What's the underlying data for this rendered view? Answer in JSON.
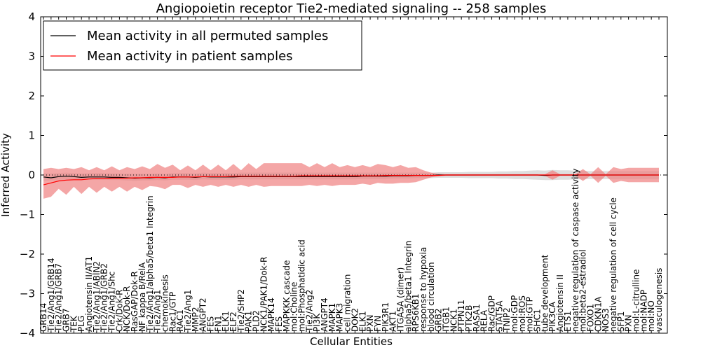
{
  "chart_data": {
    "type": "line",
    "title": "Angiopoietin receptor Tie2-mediated signaling -- 258 samples",
    "xlabel": "Cellular Entities",
    "ylabel": "Inferred Activity",
    "ylim": [
      -4,
      4
    ],
    "yticks": [
      -4,
      -3,
      -2,
      -1,
      0,
      1,
      2,
      3,
      4
    ],
    "ytick_labels": [
      "−4",
      "−3",
      "−2",
      "−1",
      "0",
      "1",
      "2",
      "3",
      "4"
    ],
    "grid": false,
    "legend_position": "top-left",
    "reference_line": 0,
    "categories": [
      "GRB14",
      "Tie2/Ang1/GRB14",
      "Tie2/Ang1/GRB7",
      "GRB7",
      "TEK",
      "PLG",
      "Angiotensin II/AT1",
      "Tie2/Ang1/ABIN2",
      "Tie2/Ang1/GRB2",
      "Tie2/Ang1/Shc",
      "Crk/Dok-R",
      "NCK/Dok-R",
      "RasGAP/Dok-R",
      "NF kappa B/RelA",
      "Tie2/Ang1/alpha5/beta1 Integrin",
      "Tie2/Ang1",
      "chemokinesis",
      "Rac1/GTP",
      "RAC1",
      "Tie2/Ang1",
      "MMP2",
      "ANGPT2",
      "FES",
      "FN1",
      "ELK1",
      "ELF2",
      "Tie2/SHP2",
      "PAK1",
      "PLD2",
      "NCK1/PAK1/Dok-R",
      "MAPK14",
      "FES",
      "MAPKKK cascade",
      "mol:Choline",
      "mol:Phosphatidic acid",
      "Tie2/Ang2",
      "PI3K",
      "ANGPT4",
      "MAPK1",
      "MAPK3",
      "cell migration",
      "DOK2",
      "ELK1",
      "PXN",
      "FYN",
      "PIK3R1",
      "AKT1",
      "ITGA5A (dimer)",
      "alpha5/beta1 Integrin",
      "RPS6KB1",
      "response to hypoxia",
      "blood circulation",
      "GRB2",
      "ITGB1",
      "NCK1",
      "PTPN11",
      "PTK2B",
      "RASA1",
      "RELA",
      "Rac/GDP",
      "STAT5A",
      "TNIP2",
      "mol:GDP",
      "mol:ROS",
      "mol:GTP",
      "SHC1",
      "tube development",
      "PIK3CA",
      "Angiotensin II",
      "ETS1",
      "negative regulation of caspase activity",
      "mol:beta2-estradiol",
      "FOXO1",
      "CDKN1A",
      "NOS3",
      "negative regulation of cell cycle",
      "SFP1",
      "PXN",
      "mol:L-citrulline",
      "mol:NADP",
      "mol:NO",
      "vasculogenesis"
    ],
    "series": [
      {
        "name": "Mean activity in all permuted samples",
        "color": "#000000",
        "values": [
          -0.05,
          -0.07,
          -0.04,
          -0.03,
          -0.04,
          -0.06,
          -0.05,
          -0.05,
          -0.05,
          -0.06,
          -0.06,
          -0.07,
          -0.08,
          -0.07,
          -0.07,
          -0.06,
          -0.07,
          -0.05,
          -0.05,
          -0.05,
          -0.06,
          -0.04,
          -0.05,
          -0.05,
          -0.05,
          -0.05,
          -0.04,
          -0.04,
          -0.04,
          -0.04,
          -0.04,
          -0.04,
          -0.04,
          -0.04,
          -0.04,
          -0.04,
          -0.04,
          -0.04,
          -0.04,
          -0.04,
          -0.04,
          -0.04,
          -0.03,
          -0.03,
          -0.03,
          -0.03,
          -0.02,
          -0.02,
          -0.02,
          -0.01,
          -0.01,
          -0.01,
          0,
          0,
          0,
          0,
          0,
          0,
          0,
          0,
          0,
          0,
          0,
          0,
          0,
          0,
          -0.01,
          0,
          0,
          0,
          0,
          0,
          0,
          0,
          0,
          0,
          0,
          0,
          0,
          0,
          0,
          0
        ]
      },
      {
        "name": "Mean activity in patient samples",
        "color": "#ff0000",
        "values": [
          -0.25,
          -0.2,
          -0.15,
          -0.13,
          -0.12,
          -0.12,
          -0.1,
          -0.09,
          -0.09,
          -0.08,
          -0.08,
          -0.08,
          -0.07,
          -0.07,
          -0.06,
          -0.06,
          -0.06,
          -0.06,
          -0.05,
          -0.05,
          -0.05,
          -0.04,
          -0.04,
          -0.04,
          -0.04,
          -0.03,
          -0.03,
          -0.03,
          -0.03,
          -0.03,
          -0.03,
          -0.03,
          -0.03,
          -0.03,
          -0.02,
          -0.02,
          -0.02,
          -0.02,
          -0.02,
          -0.02,
          -0.02,
          -0.02,
          -0.02,
          -0.02,
          -0.02,
          -0.01,
          -0.01,
          -0.01,
          -0.01,
          -0.01,
          -0.01,
          -0.01,
          -0.01,
          0,
          0,
          0,
          0,
          0,
          0,
          0,
          0,
          0,
          0,
          0,
          0,
          0,
          0,
          0,
          0,
          0,
          0,
          0,
          0,
          0,
          0,
          0,
          0,
          0,
          0,
          0,
          0,
          0
        ]
      }
    ],
    "bands": [
      {
        "name": "permuted spread",
        "color": "#d3d3d3",
        "lower": [
          -0.15,
          -0.14,
          -0.12,
          -0.12,
          -0.12,
          -0.13,
          -0.12,
          -0.12,
          -0.12,
          -0.13,
          -0.13,
          -0.14,
          -0.15,
          -0.14,
          -0.14,
          -0.13,
          -0.14,
          -0.12,
          -0.12,
          -0.12,
          -0.13,
          -0.11,
          -0.12,
          -0.12,
          -0.12,
          -0.12,
          -0.11,
          -0.11,
          -0.11,
          -0.11,
          -0.11,
          -0.11,
          -0.11,
          -0.11,
          -0.11,
          -0.11,
          -0.11,
          -0.11,
          -0.11,
          -0.11,
          -0.11,
          -0.11,
          -0.1,
          -0.1,
          -0.1,
          -0.1,
          -0.09,
          -0.09,
          -0.09,
          -0.08,
          -0.08,
          -0.08,
          -0.07,
          -0.07,
          -0.07,
          -0.07,
          -0.08,
          -0.08,
          -0.08,
          -0.08,
          -0.09,
          -0.09,
          -0.1,
          -0.1,
          -0.11,
          -0.12,
          -0.13,
          -0.13,
          -0.12,
          -0.12,
          -0.11,
          -0.11,
          -0.1,
          -0.1,
          -0.1,
          -0.1,
          -0.1,
          -0.1,
          -0.1,
          -0.1,
          -0.1,
          -0.1
        ],
        "upper": [
          0.05,
          0.04,
          0.05,
          0.06,
          0.05,
          0.04,
          0.05,
          0.05,
          0.05,
          0.04,
          0.04,
          0.03,
          0.03,
          0.03,
          0.03,
          0.04,
          0.03,
          0.05,
          0.05,
          0.05,
          0.04,
          0.06,
          0.05,
          0.05,
          0.05,
          0.05,
          0.06,
          0.06,
          0.06,
          0.06,
          0.06,
          0.06,
          0.06,
          0.06,
          0.06,
          0.06,
          0.06,
          0.06,
          0.06,
          0.06,
          0.06,
          0.06,
          0.06,
          0.06,
          0.06,
          0.06,
          0.06,
          0.06,
          0.06,
          0.06,
          0.06,
          0.06,
          0.07,
          0.07,
          0.07,
          0.07,
          0.08,
          0.08,
          0.08,
          0.08,
          0.09,
          0.09,
          0.1,
          0.1,
          0.11,
          0.12,
          0.11,
          0.13,
          0.12,
          0.12,
          0.11,
          0.11,
          0.1,
          0.1,
          0.1,
          0.1,
          0.1,
          0.1,
          0.1,
          0.1,
          0.1,
          0.1
        ]
      },
      {
        "name": "patient spread",
        "color": "#f08080",
        "lower": [
          -0.6,
          -0.55,
          -0.35,
          -0.5,
          -0.3,
          -0.48,
          -0.3,
          -0.45,
          -0.3,
          -0.42,
          -0.3,
          -0.42,
          -0.3,
          -0.38,
          -0.28,
          -0.3,
          -0.36,
          -0.25,
          -0.25,
          -0.33,
          -0.25,
          -0.3,
          -0.25,
          -0.3,
          -0.25,
          -0.3,
          -0.25,
          -0.3,
          -0.25,
          -0.3,
          -0.28,
          -0.28,
          -0.28,
          -0.28,
          -0.28,
          -0.25,
          -0.28,
          -0.25,
          -0.28,
          -0.25,
          -0.25,
          -0.25,
          -0.22,
          -0.25,
          -0.2,
          -0.22,
          -0.22,
          -0.2,
          -0.2,
          -0.18,
          -0.12,
          -0.06,
          -0.03,
          -0.02,
          -0.02,
          -0.02,
          -0.02,
          -0.02,
          -0.02,
          -0.02,
          -0.02,
          -0.02,
          -0.02,
          -0.02,
          -0.02,
          -0.02,
          -0.02,
          -0.12,
          -0.02,
          -0.02,
          -0.02,
          -0.15,
          -0.02,
          -0.2,
          -0.02,
          -0.2,
          -0.15,
          -0.18,
          -0.18,
          -0.18,
          -0.18,
          -0.18
        ],
        "upper": [
          0.15,
          0.18,
          0.15,
          0.18,
          0.15,
          0.2,
          0.12,
          0.2,
          0.12,
          0.22,
          0.12,
          0.2,
          0.15,
          0.22,
          0.15,
          0.28,
          0.18,
          0.26,
          0.12,
          0.24,
          0.12,
          0.26,
          0.12,
          0.26,
          0.12,
          0.28,
          0.12,
          0.3,
          0.15,
          0.3,
          0.3,
          0.3,
          0.3,
          0.3,
          0.3,
          0.2,
          0.3,
          0.2,
          0.3,
          0.2,
          0.25,
          0.2,
          0.25,
          0.2,
          0.28,
          0.25,
          0.2,
          0.25,
          0.18,
          0.2,
          0.12,
          0.06,
          0.03,
          0.02,
          0.02,
          0.02,
          0.02,
          0.02,
          0.02,
          0.02,
          0.02,
          0.02,
          0.02,
          0.02,
          0.02,
          0.02,
          0.02,
          0.12,
          0.02,
          0.02,
          0.02,
          0.15,
          0.02,
          0.2,
          0.02,
          0.2,
          0.15,
          0.18,
          0.18,
          0.18,
          0.18,
          0.18
        ]
      }
    ]
  }
}
